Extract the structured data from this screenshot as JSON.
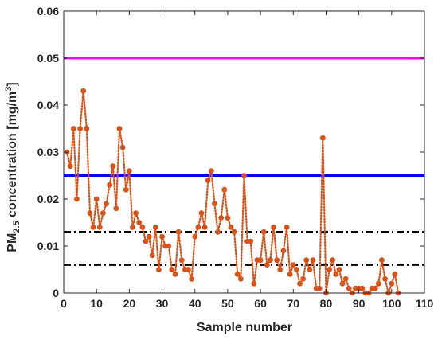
{
  "chart_data": {
    "type": "line",
    "title": "",
    "xlabel": "Sample number",
    "ylabel": {
      "prefix": "PM",
      "subscript": "2.5",
      "middle": " concentration [mg/m",
      "superscript": "3",
      "suffix": "]"
    },
    "xlim": [
      0,
      110
    ],
    "ylim": [
      0,
      0.06
    ],
    "xticks": [
      "0",
      "10",
      "20",
      "30",
      "40",
      "50",
      "60",
      "70",
      "80",
      "90",
      "100",
      "110"
    ],
    "yticks": [
      "0",
      "0.01",
      "0.02",
      "0.03",
      "0.04",
      "0.05",
      "0.06"
    ],
    "grid": false,
    "legend": "none",
    "reference_lines": [
      {
        "y": 0.05,
        "color": "#ff00ff",
        "style": "solid"
      },
      {
        "y": 0.025,
        "color": "#0000ff",
        "style": "solid"
      },
      {
        "y": 0.013,
        "color": "#000000",
        "style": "dash-dot"
      },
      {
        "y": 0.006,
        "color": "#000000",
        "style": "dash-dot"
      }
    ],
    "series": [
      {
        "color": "#d95319",
        "line_style": "dotted",
        "marker": "circle",
        "x": [
          1,
          2,
          3,
          4,
          5,
          6,
          7,
          8,
          9,
          10,
          11,
          12,
          13,
          14,
          15,
          16,
          17,
          18,
          19,
          20,
          21,
          22,
          23,
          24,
          25,
          26,
          27,
          28,
          29,
          30,
          31,
          32,
          33,
          34,
          35,
          36,
          37,
          38,
          39,
          40,
          41,
          42,
          43,
          44,
          45,
          46,
          47,
          48,
          49,
          50,
          51,
          52,
          53,
          54,
          55,
          56,
          57,
          58,
          59,
          60,
          61,
          62,
          63,
          64,
          65,
          66,
          67,
          68,
          69,
          70,
          71,
          72,
          73,
          74,
          75,
          76,
          77,
          78,
          79,
          80,
          81,
          82,
          83,
          84,
          85,
          86,
          87,
          88,
          89,
          90,
          91,
          92,
          93,
          94,
          95,
          96,
          97,
          98,
          99,
          100,
          101,
          102
        ],
        "y": [
          0.03,
          0.027,
          0.035,
          0.02,
          0.035,
          0.043,
          0.035,
          0.017,
          0.014,
          0.02,
          0.014,
          0.017,
          0.019,
          0.023,
          0.027,
          0.018,
          0.035,
          0.031,
          0.022,
          0.026,
          0.014,
          0.017,
          0.015,
          0.014,
          0.011,
          0.012,
          0.008,
          0.014,
          0.005,
          0.012,
          0.01,
          0.01,
          0.005,
          0.004,
          0.013,
          0.007,
          0.005,
          0.005,
          0.003,
          0.012,
          0.014,
          0.017,
          0.014,
          0.024,
          0.026,
          0.019,
          0.013,
          0.016,
          0.022,
          0.016,
          0.014,
          0.013,
          0.004,
          0.003,
          0.025,
          0.011,
          0.011,
          0.002,
          0.007,
          0.007,
          0.013,
          0.006,
          0.007,
          0.014,
          0.007,
          0.005,
          0.009,
          0.014,
          0.004,
          0.006,
          0.005,
          0.002,
          0.003,
          0.007,
          0.005,
          0.007,
          0.001,
          0.001,
          0.033,
          0.0,
          0.005,
          0.007,
          0.004,
          0.005,
          0.002,
          0.003,
          0.001,
          0.0,
          0.001,
          0.001,
          0.001,
          0.0,
          0.0,
          0.001,
          0.001,
          0.002,
          0.007,
          0.003,
          0.0,
          0.002,
          0.004,
          0.0
        ]
      }
    ]
  }
}
